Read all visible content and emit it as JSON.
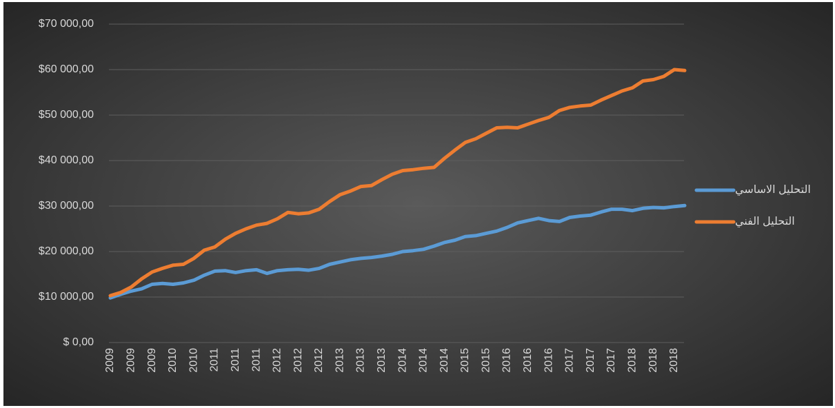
{
  "chart_data": {
    "type": "line",
    "categories": [
      "2009",
      null,
      "2009",
      null,
      "2009",
      null,
      "2010",
      null,
      "2010",
      null,
      "2011",
      null,
      "2011",
      null,
      "2011",
      null,
      "2012",
      null,
      "2012",
      null,
      "2012",
      null,
      "2013",
      null,
      "2013",
      null,
      "2013",
      null,
      "2014",
      null,
      "2014",
      null,
      "2014",
      null,
      "2015",
      null,
      "2015",
      null,
      "2016",
      null,
      "2016",
      null,
      "2016",
      null,
      "2017",
      null,
      "2017",
      null,
      "2017",
      null,
      "2018",
      null,
      "2018",
      null,
      "2018",
      null
    ],
    "series": [
      {
        "name": "التحليل الاساسي",
        "color": "#5b9bd5",
        "values": [
          9800,
          10600,
          11300,
          11800,
          12800,
          13000,
          12800,
          13100,
          13700,
          14800,
          15700,
          15800,
          15400,
          15800,
          16000,
          15200,
          15800,
          16000,
          16100,
          15900,
          16300,
          17200,
          17700,
          18200,
          18500,
          18700,
          19000,
          19400,
          20000,
          20200,
          20500,
          21200,
          22000,
          22500,
          23300,
          23500,
          24000,
          24500,
          25300,
          26300,
          26800,
          27300,
          26800,
          26600,
          27500,
          27800,
          28000,
          28700,
          29300,
          29300,
          29000,
          29500,
          29700,
          29600,
          29900,
          30100
        ]
      },
      {
        "name": "التحليل الفني",
        "color": "#ed7d31",
        "values": [
          10300,
          11000,
          12200,
          14000,
          15500,
          16300,
          17000,
          17200,
          18500,
          20300,
          21000,
          22700,
          24000,
          25000,
          25800,
          26200,
          27200,
          28600,
          28300,
          28500,
          29300,
          31000,
          32500,
          33300,
          34300,
          34500,
          35800,
          37000,
          37800,
          38000,
          38300,
          38500,
          40500,
          42300,
          44000,
          44800,
          46000,
          47200,
          47300,
          47200,
          48000,
          48800,
          49500,
          51000,
          51700,
          52000,
          52200,
          53300,
          54300,
          55300,
          56000,
          57500,
          57800,
          58500,
          60000,
          59800
        ]
      }
    ],
    "ylim": [
      0,
      70000
    ],
    "yticks": [
      {
        "value": 0,
        "label": "$ 0,00"
      },
      {
        "value": 10000,
        "label": "$10 000,00"
      },
      {
        "value": 20000,
        "label": "$20 000,00"
      },
      {
        "value": 30000,
        "label": "$30 000,00"
      },
      {
        "value": 40000,
        "label": "$40 000,00"
      },
      {
        "value": 50000,
        "label": "$50 000,00"
      },
      {
        "value": 60000,
        "label": "$60 000,00"
      },
      {
        "value": 70000,
        "label": "$70 000,00"
      }
    ],
    "grid": true,
    "legend": "right"
  }
}
